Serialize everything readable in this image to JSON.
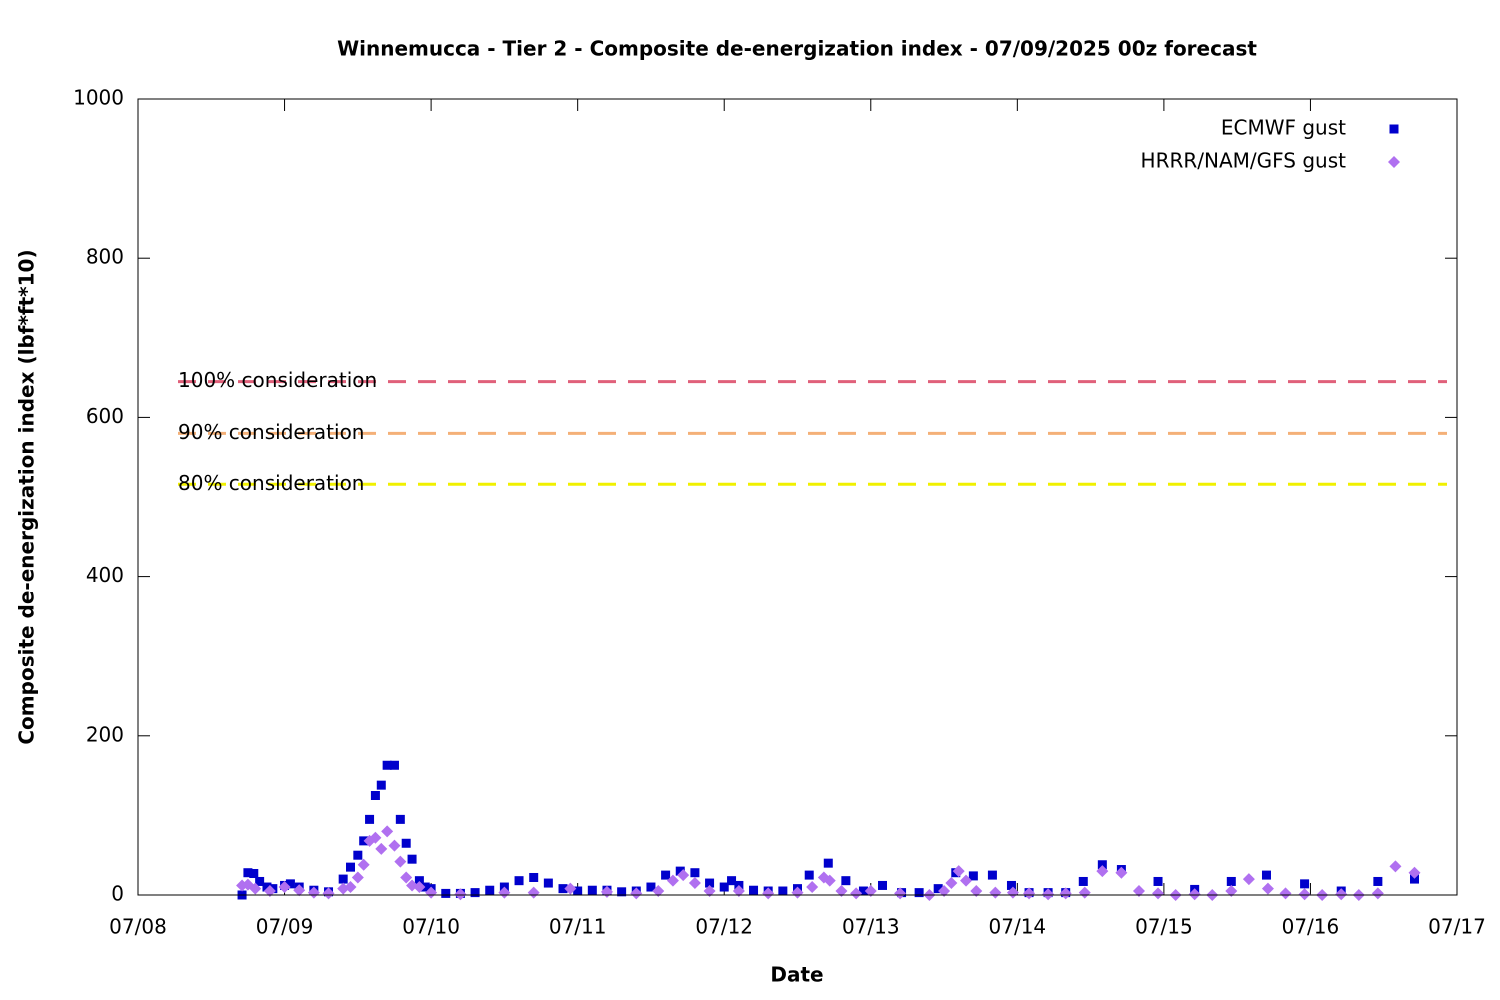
{
  "chart_data": {
    "type": "scatter",
    "title": "Winnemucca - Tier 2 - Composite de-energization index - 07/09/2025 00z forecast",
    "x_label": "Date",
    "y_label": "Composite de-energization index (lbf*ft*10)",
    "xlim": [
      8,
      17
    ],
    "xticks": [
      {
        "value": 8,
        "label": "07/08"
      },
      {
        "value": 9,
        "label": "07/09"
      },
      {
        "value": 10,
        "label": "07/10"
      },
      {
        "value": 11,
        "label": "07/11"
      },
      {
        "value": 12,
        "label": "07/12"
      },
      {
        "value": 13,
        "label": "07/13"
      },
      {
        "value": 14,
        "label": "07/14"
      },
      {
        "value": 15,
        "label": "07/15"
      },
      {
        "value": 16,
        "label": "07/16"
      },
      {
        "value": 17,
        "label": "07/17"
      }
    ],
    "ylim": [
      0,
      1000
    ],
    "yticks": [
      0,
      200,
      400,
      600,
      800,
      1000
    ],
    "legend": "top-right",
    "thresholds": [
      {
        "label": "100% consideration",
        "value": 645,
        "color": "#e0607a"
      },
      {
        "label": "90% consideration",
        "value": 580,
        "color": "#f4b078"
      },
      {
        "label": "80% consideration",
        "value": 516,
        "color": "#f0f000"
      }
    ],
    "series": [
      {
        "name": "ECMWF gust",
        "color": "#0000cc",
        "marker": "square",
        "x": [
          8.71,
          8.75,
          8.79,
          8.83,
          8.88,
          8.92,
          9.0,
          9.04,
          9.1,
          9.2,
          9.3,
          9.4,
          9.45,
          9.5,
          9.54,
          9.58,
          9.62,
          9.66,
          9.7,
          9.75,
          9.79,
          9.83,
          9.87,
          9.92,
          9.96,
          10.0,
          10.1,
          10.2,
          10.3,
          10.4,
          10.5,
          10.6,
          10.7,
          10.8,
          10.9,
          11.0,
          11.1,
          11.2,
          11.3,
          11.4,
          11.5,
          11.6,
          11.7,
          11.8,
          11.9,
          12.0,
          12.05,
          12.1,
          12.2,
          12.3,
          12.4,
          12.5,
          12.58,
          12.71,
          12.83,
          12.95,
          13.08,
          13.21,
          13.33,
          13.46,
          13.58,
          13.7,
          13.83,
          13.96,
          14.08,
          14.21,
          14.33,
          14.45,
          14.58,
          14.71,
          14.96,
          15.21,
          15.46,
          15.7,
          15.96,
          16.21,
          16.46,
          16.71
        ],
        "values": [
          0,
          28,
          27,
          17,
          10,
          8,
          12,
          14,
          10,
          6,
          4,
          20,
          35,
          50,
          68,
          95,
          125,
          138,
          163,
          163,
          95,
          65,
          45,
          18,
          10,
          8,
          2,
          2,
          3,
          6,
          10,
          18,
          22,
          15,
          8,
          5,
          6,
          6,
          4,
          5,
          10,
          25,
          30,
          28,
          15,
          10,
          18,
          12,
          6,
          5,
          5,
          8,
          25,
          40,
          18,
          5,
          12,
          3,
          3,
          8,
          28,
          24,
          25,
          12,
          3,
          3,
          3,
          17,
          38,
          32,
          17,
          7,
          17,
          25,
          14,
          5,
          17,
          20
        ]
      },
      {
        "name": "HRRR/NAM/GFS gust",
        "color": "#b070f0",
        "marker": "diamond",
        "x": [
          8.71,
          8.75,
          8.8,
          8.9,
          9.0,
          9.1,
          9.2,
          9.3,
          9.4,
          9.45,
          9.5,
          9.54,
          9.58,
          9.62,
          9.66,
          9.7,
          9.75,
          9.79,
          9.83,
          9.87,
          9.92,
          10.0,
          10.2,
          10.5,
          10.7,
          10.95,
          11.2,
          11.4,
          11.55,
          11.65,
          11.72,
          11.8,
          11.9,
          12.1,
          12.3,
          12.5,
          12.6,
          12.68,
          12.72,
          12.8,
          12.9,
          13.0,
          13.2,
          13.4,
          13.5,
          13.55,
          13.6,
          13.65,
          13.72,
          13.85,
          13.97,
          14.08,
          14.21,
          14.33,
          14.46,
          14.58,
          14.71,
          14.83,
          14.96,
          15.08,
          15.21,
          15.33,
          15.46,
          15.58,
          15.71,
          15.83,
          15.96,
          16.08,
          16.21,
          16.33,
          16.46,
          16.58,
          16.71
        ],
        "values": [
          12,
          13,
          8,
          5,
          10,
          6,
          3,
          2,
          8,
          10,
          22,
          38,
          68,
          72,
          58,
          80,
          62,
          42,
          22,
          12,
          10,
          3,
          1,
          3,
          3,
          8,
          4,
          2,
          5,
          18,
          25,
          15,
          5,
          5,
          2,
          3,
          10,
          22,
          18,
          5,
          2,
          5,
          2,
          0,
          5,
          15,
          30,
          18,
          5,
          3,
          3,
          2,
          1,
          2,
          3,
          30,
          28,
          5,
          2,
          0,
          1,
          0,
          5,
          20,
          8,
          2,
          1,
          0,
          1,
          0,
          2,
          36,
          28
        ]
      }
    ]
  }
}
